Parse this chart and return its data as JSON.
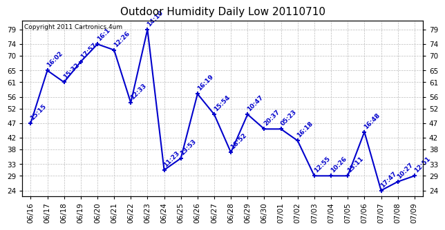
{
  "title": "Outdoor Humidity Daily Low 20110710",
  "copyright": "Copyright 2011 Cartronics.4um",
  "line_color": "#0000CC",
  "background_color": "#ffffff",
  "plot_bg_color": "#ffffff",
  "grid_color": "#bbbbbb",
  "x_labels": [
    "06/16",
    "06/17",
    "06/18",
    "06/19",
    "06/20",
    "06/21",
    "06/22",
    "06/23",
    "06/24",
    "06/25",
    "06/26",
    "06/27",
    "06/28",
    "06/29",
    "06/30",
    "07/01",
    "07/02",
    "07/03",
    "07/04",
    "07/05",
    "07/06",
    "07/07",
    "07/08",
    "07/09"
  ],
  "y_values": [
    47,
    65,
    61,
    68,
    74,
    72,
    54,
    79,
    31,
    35,
    57,
    50,
    37,
    50,
    45,
    45,
    41,
    29,
    29,
    29,
    44,
    24,
    27,
    29
  ],
  "point_labels": [
    "15:15",
    "16:02",
    "15:32",
    "17:57",
    "16:1",
    "12:26",
    "12:33",
    "14:10",
    "11:23",
    "13:53",
    "16:19",
    "15:54",
    "16:52",
    "10:47",
    "20:37",
    "05:23",
    "16:18",
    "12:55",
    "10:26",
    "13:11",
    "16:48",
    "17:47",
    "10:27",
    "12:51"
  ],
  "y_ticks": [
    24,
    29,
    33,
    38,
    42,
    47,
    52,
    56,
    61,
    65,
    70,
    74,
    79
  ],
  "ylim": [
    22,
    82
  ],
  "marker": "+",
  "marker_size": 5,
  "line_width": 1.5,
  "title_fontsize": 11,
  "label_fontsize": 6.5,
  "tick_fontsize": 7.5,
  "copyright_fontsize": 6.5
}
